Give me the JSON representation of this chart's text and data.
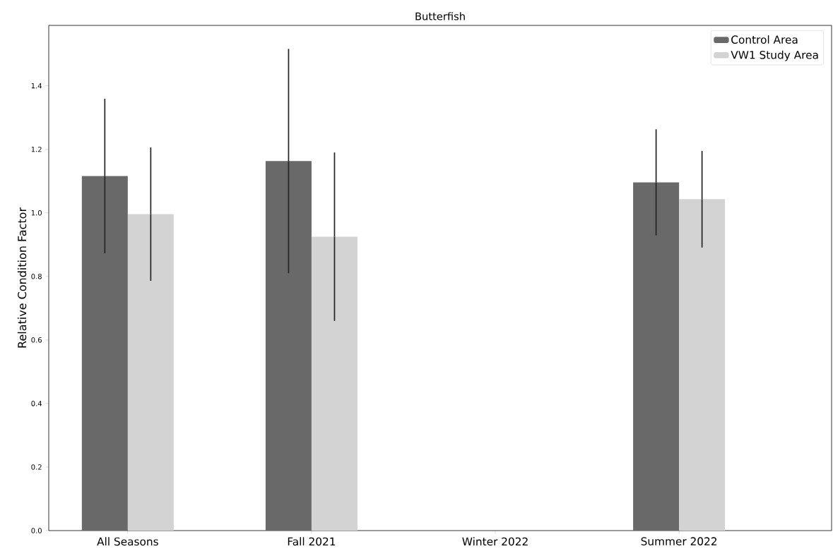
{
  "chart_data": {
    "type": "bar",
    "title": "Butterfish",
    "ylabel": "Relative Condition Factor",
    "categories": [
      "All Seasons",
      "Fall 2021",
      "Winter 2022",
      "Summer 2022"
    ],
    "series": [
      {
        "name": "Control Area",
        "color": "#696969",
        "values": [
          1.116,
          1.163,
          null,
          1.096
        ],
        "errors": [
          0.243,
          0.353,
          null,
          0.167
        ]
      },
      {
        "name": "VW1 Study Area",
        "color": "#d3d3d3",
        "values": [
          0.996,
          0.925,
          null,
          1.043
        ],
        "errors": [
          0.21,
          0.265,
          null,
          0.152
        ]
      }
    ],
    "ylim": [
      0,
      1.59
    ],
    "yticks": [
      {
        "value": 0,
        "label": "0.0"
      },
      {
        "value": 0.2,
        "label": "0.2"
      },
      {
        "value": 0.4,
        "label": "0.4"
      },
      {
        "value": 0.6,
        "label": "0.6"
      },
      {
        "value": 0.8,
        "label": "0.8"
      },
      {
        "value": 1.0,
        "label": "1.0"
      },
      {
        "value": 1.2,
        "label": "1.2"
      },
      {
        "value": 1.4,
        "label": "1.4"
      }
    ],
    "legend": "top right"
  }
}
